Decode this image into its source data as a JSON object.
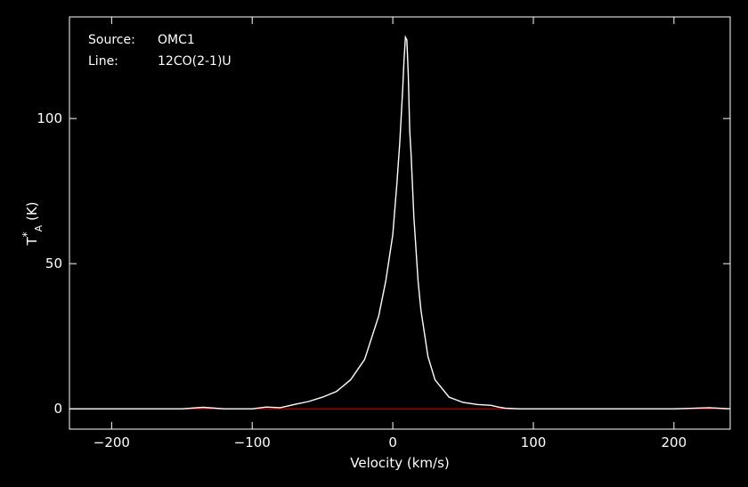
{
  "info": {
    "source_label": "Source:",
    "source_value": "OMC1",
    "line_label": "Line:",
    "line_value": "12CO(2-1)U"
  },
  "colors": {
    "background": "#000000",
    "axes": "#ffffff",
    "spectrum": "#ffffff",
    "baseline": "#cc0000"
  },
  "chart_data": {
    "type": "line",
    "title": "",
    "xlabel": "Velocity (km/s)",
    "ylabel": "T*A (K)",
    "ylabel_main": "T",
    "ylabel_sup": "*",
    "ylabel_sub": "A",
    "ylabel_unit": " (K)",
    "xlim": [
      -230,
      240
    ],
    "ylim": [
      -7,
      135
    ],
    "xticks": [
      -200,
      -100,
      0,
      100,
      200
    ],
    "xtick_labels": [
      "−200",
      "−100",
      "0",
      "100",
      "200"
    ],
    "yticks": [
      0,
      50,
      100
    ],
    "ytick_labels": [
      "0",
      "50",
      "100"
    ],
    "grid": false,
    "series": [
      {
        "values_x": [
          -230,
          -200,
          -170,
          -150,
          -135,
          -120,
          -100,
          -90,
          -80,
          -70,
          -60,
          -50,
          -40,
          -30,
          -20,
          -10,
          -5,
          0,
          3,
          5,
          7,
          8,
          9,
          10,
          11,
          12,
          13,
          15,
          18,
          20,
          25,
          30,
          40,
          50,
          60,
          70,
          75,
          80,
          90,
          100,
          130,
          150,
          170,
          200,
          225,
          240
        ],
        "values_y": [
          0,
          0,
          0,
          0,
          0.5,
          0,
          0,
          0.6,
          0.4,
          1.5,
          2.5,
          4,
          6,
          10,
          17,
          32,
          44,
          60,
          78,
          92,
          110,
          120,
          128,
          127,
          115,
          96,
          88,
          66,
          44,
          34,
          18,
          10,
          4,
          2.2,
          1.5,
          1.2,
          0.6,
          0.2,
          0,
          0,
          0,
          0,
          0,
          0,
          0.4,
          0
        ]
      },
      {
        "values_x": [
          -230,
          240
        ],
        "values_y": [
          0,
          0
        ]
      }
    ]
  }
}
